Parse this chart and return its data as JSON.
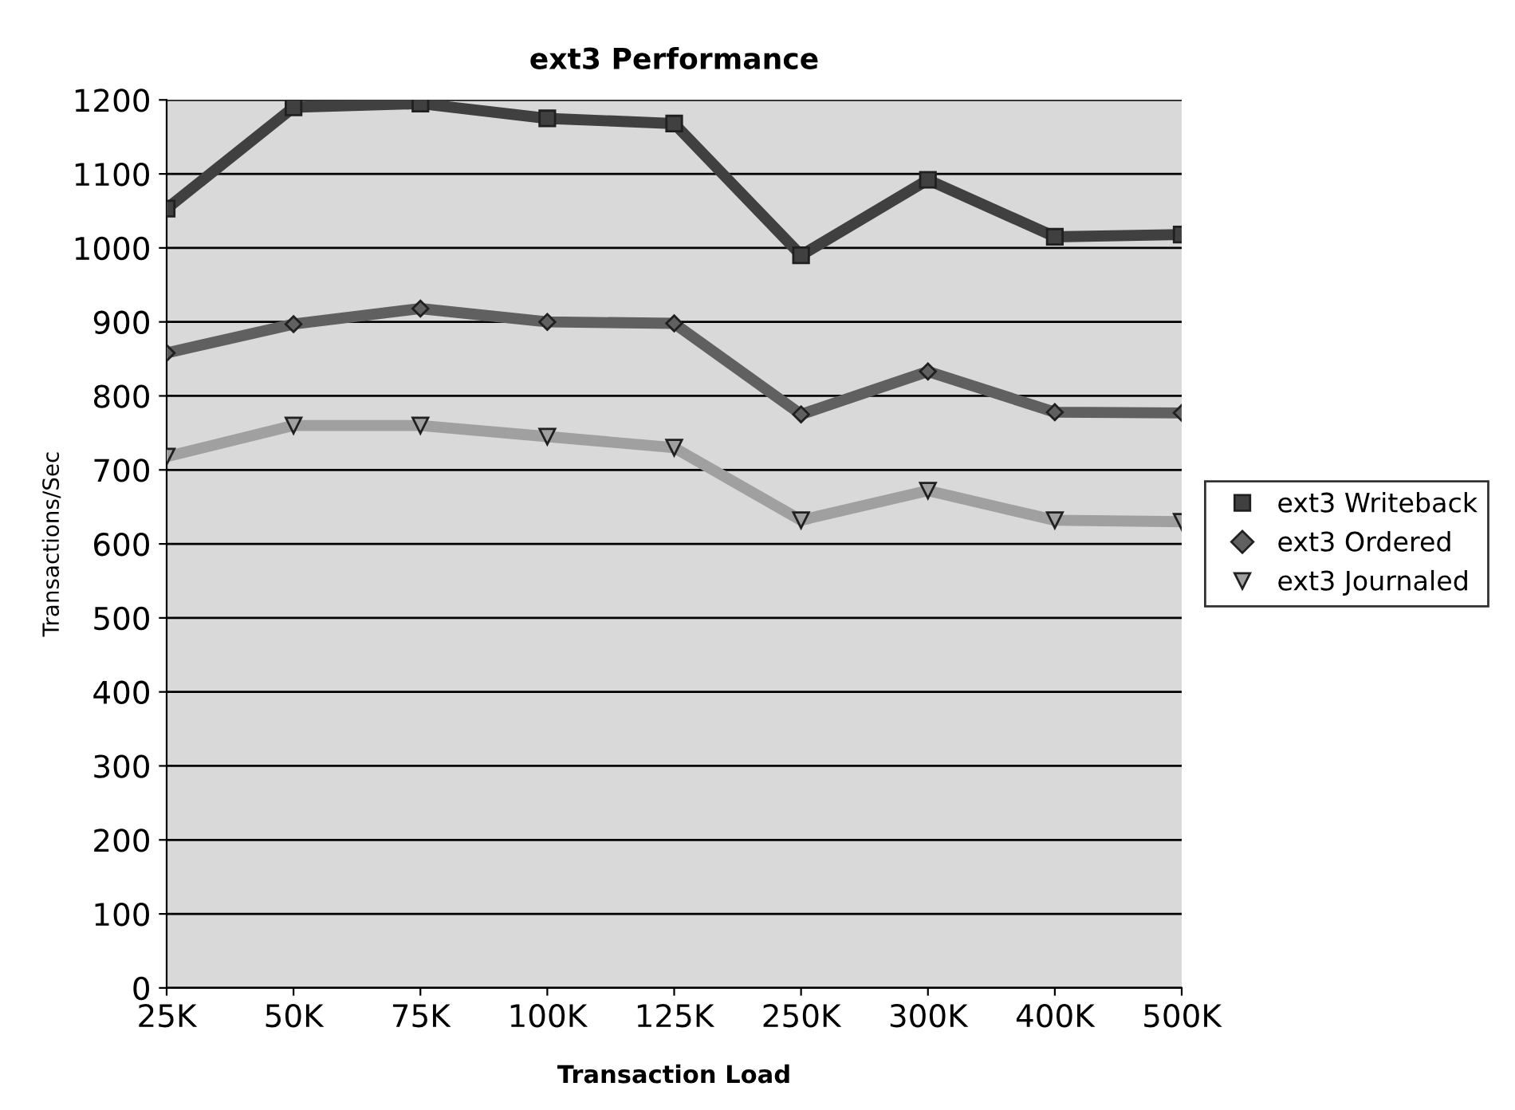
{
  "chart_data": {
    "type": "line",
    "title": "ext3 Performance",
    "xlabel": "Transaction Load",
    "ylabel": "Transactions/Sec",
    "categories": [
      "25K",
      "50K",
      "75K",
      "100K",
      "125K",
      "250K",
      "300K",
      "400K",
      "500K"
    ],
    "series": [
      {
        "name": "ext3 Writeback",
        "color": "#404040",
        "marker": "square",
        "values": [
          1053,
          1190,
          1195,
          1175,
          1168,
          990,
          1092,
          1015,
          1018
        ]
      },
      {
        "name": "ext3 Ordered",
        "color": "#606060",
        "marker": "diamond",
        "values": [
          858,
          897,
          918,
          900,
          898,
          775,
          833,
          778,
          777
        ]
      },
      {
        "name": "ext3 Journaled",
        "color": "#a0a0a0",
        "marker": "triangle",
        "values": [
          718,
          760,
          760,
          745,
          730,
          632,
          672,
          632,
          630
        ]
      }
    ],
    "ylim": [
      0,
      1200
    ],
    "yticks": [
      0,
      100,
      200,
      300,
      400,
      500,
      600,
      700,
      800,
      900,
      1000,
      1100,
      1200
    ],
    "grid": "y",
    "legend": "right",
    "line_style": "solid"
  }
}
